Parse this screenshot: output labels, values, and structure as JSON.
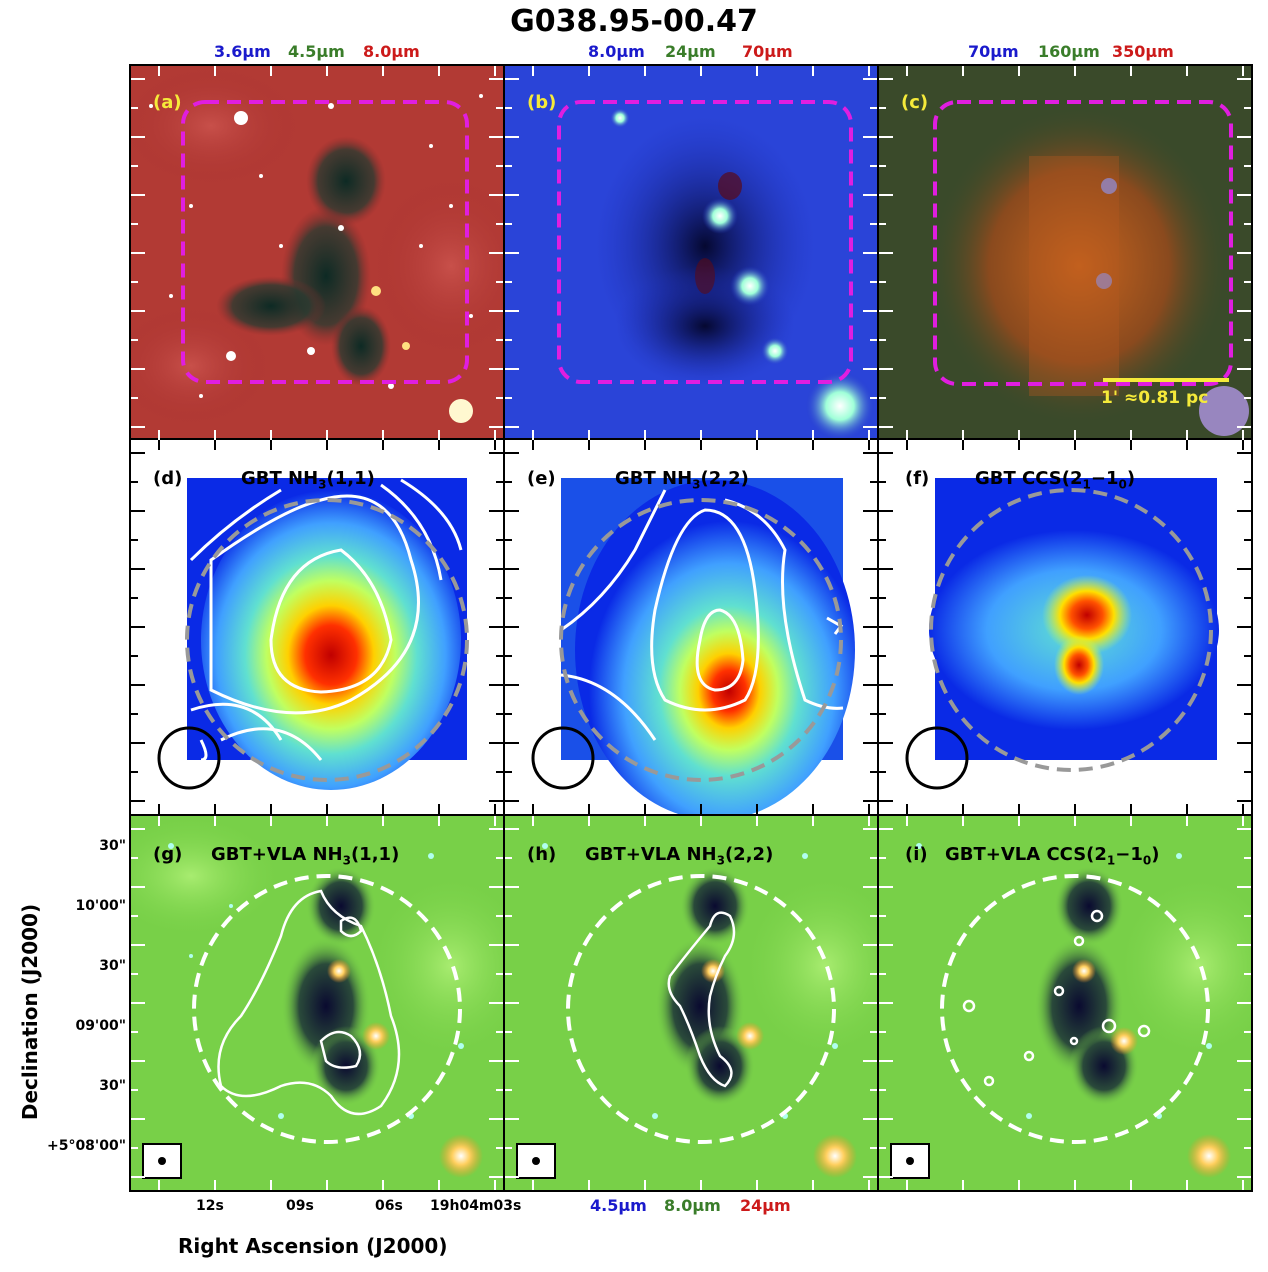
{
  "figure": {
    "title": "G038.95-00.47",
    "band_labels": [
      {
        "blue": "3.6μm",
        "green": "4.5μm",
        "red": "8.0μm"
      },
      {
        "blue": "8.0μm",
        "green": "24μm",
        "red": "70μm"
      },
      {
        "blue": "70μm",
        "green": "160μm",
        "red": "350μm"
      }
    ],
    "bottom_band_labels": {
      "blue": "4.5μm",
      "green": "8.0μm",
      "red": "24μm"
    },
    "scale_bar_label": "1' ≈0.81 pc",
    "colors": {
      "blue": "#1a1acc",
      "green": "#3a7d2a",
      "red": "#cc1a1a",
      "panel_label_yellow": "#f5ea3a",
      "magenta": "#e01ee0"
    }
  },
  "panels": {
    "a": {
      "label": "(a)"
    },
    "b": {
      "label": "(b)"
    },
    "c": {
      "label": "(c)"
    },
    "d": {
      "label": "(d)",
      "title_pre": "GBT NH",
      "sub": "3",
      "title_post": "(1,1)"
    },
    "e": {
      "label": "(e)",
      "title_pre": "GBT NH",
      "sub": "3",
      "title_post": "(2,2)"
    },
    "f": {
      "label": "(f)",
      "title_pre": "GBT CCS(2",
      "sub": "1",
      "mid": "−1",
      "sub2": "0",
      "title_post": ")"
    },
    "g": {
      "label": "(g)",
      "title_pre": "GBT+VLA NH",
      "sub": "3",
      "title_post": "(1,1)"
    },
    "h": {
      "label": "(h)",
      "title_pre": "GBT+VLA NH",
      "sub": "3",
      "title_post": "(2,2)"
    },
    "i": {
      "label": "(i)",
      "title_pre": "GBT+VLA CCS(2",
      "sub": "1",
      "mid": "−1",
      "sub2": "0",
      "title_post": ")"
    }
  },
  "axes": {
    "y_title": "Declination (J2000)",
    "x_title": "Right Ascension (J2000)",
    "y_ticks": [
      "30\"",
      "10'00\"",
      "30\"",
      "09'00\"",
      "30\"",
      "+5°08'00\""
    ],
    "x_ticks": [
      "12s",
      "09s",
      "06s",
      "19h04m03s"
    ]
  }
}
